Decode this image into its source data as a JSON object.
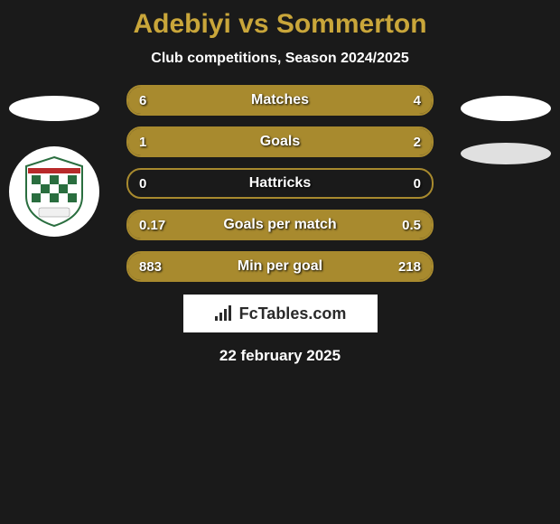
{
  "title": "Adebiyi vs Sommerton",
  "subtitle": "Club competitions, Season 2024/2025",
  "date": "22 february 2025",
  "logo_text": "FcTables.com",
  "colors": {
    "background": "#1a1a1a",
    "accent": "#c9a63a",
    "bar_fill": "#a88a2e",
    "text": "#ffffff"
  },
  "stats": [
    {
      "label": "Matches",
      "left_val": "6",
      "right_val": "4",
      "left_pct": 60,
      "right_pct": 40
    },
    {
      "label": "Goals",
      "left_val": "1",
      "right_val": "2",
      "left_pct": 33,
      "right_pct": 67
    },
    {
      "label": "Hattricks",
      "left_val": "0",
      "right_val": "0",
      "left_pct": 0,
      "right_pct": 0
    },
    {
      "label": "Goals per match",
      "left_val": "0.17",
      "right_val": "0.5",
      "left_pct": 25,
      "right_pct": 75
    },
    {
      "label": "Min per goal",
      "left_val": "883",
      "right_val": "218",
      "left_pct": 80,
      "right_pct": 20
    }
  ]
}
